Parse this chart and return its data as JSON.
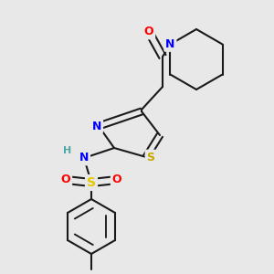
{
  "background_color": "#e8e8e8",
  "bond_color": "#1a1a1a",
  "bond_width": 1.5,
  "atom_colors": {
    "N": "#0000ff",
    "O": "#ff0000",
    "S_sul": "#e6c800",
    "S_thz": "#c8a800",
    "H": "#4fa8a8"
  },
  "fig_width": 3.0,
  "fig_height": 3.0,
  "dpi": 100
}
